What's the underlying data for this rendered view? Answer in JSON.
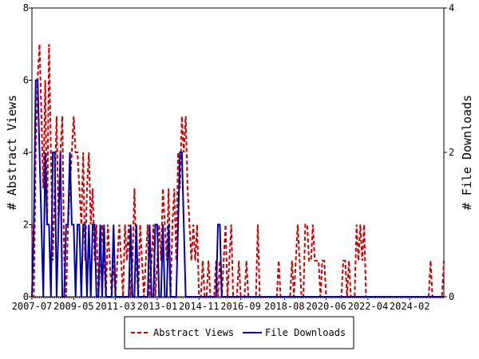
{
  "chart_data": {
    "type": "line",
    "y_label": "# Abstract Views",
    "y2_label": "# File Downloads",
    "categories": [
      "2007-07",
      null,
      null,
      null,
      null,
      null,
      null,
      null,
      null,
      null,
      null,
      null,
      null,
      null,
      null,
      null,
      null,
      null,
      null,
      null,
      null,
      null,
      "2009-05",
      null,
      null,
      null,
      null,
      null,
      null,
      null,
      null,
      null,
      null,
      null,
      null,
      null,
      null,
      null,
      null,
      null,
      null,
      null,
      null,
      null,
      "2011-03",
      null,
      null,
      null,
      null,
      null,
      null,
      null,
      null,
      null,
      null,
      null,
      null,
      null,
      null,
      null,
      null,
      null,
      null,
      null,
      null,
      null,
      "2013-01",
      null,
      null,
      null,
      null,
      null,
      null,
      null,
      null,
      null,
      null,
      null,
      null,
      null,
      null,
      null,
      null,
      null,
      null,
      null,
      null,
      null,
      "2014-11",
      null,
      null,
      null,
      null,
      null,
      null,
      null,
      null,
      null,
      null,
      null,
      null,
      null,
      null,
      null,
      null,
      null,
      null,
      null,
      null,
      null,
      "2016-09",
      null,
      null,
      null,
      null,
      null,
      null,
      null,
      null,
      null,
      null,
      null,
      null,
      null,
      null,
      null,
      null,
      null,
      null,
      null,
      null,
      null,
      null,
      "2018-08",
      null,
      null,
      null,
      null,
      null,
      null,
      null,
      null,
      null,
      null,
      null,
      null,
      null,
      null,
      null,
      null,
      null,
      null,
      null,
      null,
      null,
      "2020-06",
      null,
      null,
      null,
      null,
      null,
      null,
      null,
      null,
      null,
      null,
      null,
      null,
      null,
      null,
      null,
      null,
      null,
      null,
      null,
      null,
      null,
      "2022-04",
      null,
      null,
      null,
      null,
      null,
      null,
      null,
      null,
      null,
      null,
      null,
      null,
      null,
      null,
      null,
      null,
      null,
      null,
      null,
      null,
      null,
      "2024-02",
      null,
      null,
      null,
      null,
      null,
      null,
      null,
      null,
      null,
      null,
      null,
      null,
      null,
      null,
      null,
      null,
      null,
      null
    ],
    "series": [
      {
        "name": "Abstract Views",
        "color": "#cc0000",
        "style": "dashed",
        "axis": "y",
        "values": [
          2,
          0,
          4,
          6,
          7,
          5,
          3,
          6,
          2,
          7,
          4,
          1,
          3,
          5,
          2,
          4,
          5,
          1,
          0,
          2,
          3,
          4,
          5,
          4,
          4,
          3,
          2,
          4,
          1,
          3,
          4,
          2,
          3,
          1,
          2,
          0,
          1,
          2,
          1,
          0,
          2,
          1,
          0,
          1,
          0,
          1,
          2,
          1,
          0,
          2,
          1,
          2,
          0,
          1,
          3,
          1,
          0,
          2,
          1,
          0,
          1,
          2,
          0,
          1,
          2,
          0,
          1,
          2,
          1,
          3,
          2,
          1,
          3,
          0,
          2,
          3,
          1,
          4,
          3,
          5,
          4,
          5,
          3,
          2,
          1,
          2,
          1,
          2,
          0,
          0,
          1,
          0,
          0,
          1,
          0,
          0,
          0,
          1,
          0,
          1,
          0,
          1,
          2,
          0,
          1,
          2,
          0,
          0,
          0,
          1,
          0,
          0,
          0,
          1,
          0,
          0,
          0,
          0,
          0,
          2,
          0,
          0,
          0,
          0,
          0,
          0,
          0,
          0,
          0,
          0,
          1,
          0,
          0,
          0,
          0,
          0,
          0,
          1,
          0,
          1,
          2,
          1,
          0,
          0,
          2,
          2,
          1,
          1,
          2,
          1,
          1,
          1,
          0,
          1,
          1,
          0,
          0,
          0,
          0,
          0,
          0,
          0,
          0,
          0,
          1,
          1,
          0,
          1,
          0,
          0,
          0,
          2,
          1,
          2,
          1,
          2,
          0,
          0,
          0,
          0,
          0,
          0,
          0,
          0,
          0,
          0,
          0,
          0,
          0,
          0,
          0,
          0,
          0,
          0,
          0,
          0,
          0,
          0,
          0,
          0,
          0,
          0,
          0,
          0,
          0,
          0,
          0,
          0,
          0,
          0,
          1,
          0,
          0,
          0,
          0,
          0,
          0,
          1
        ]
      },
      {
        "name": "File Downloads",
        "color": "#0000a8",
        "style": "solid",
        "axis": "y2",
        "values": [
          0,
          1,
          3,
          3,
          2,
          1,
          0,
          2,
          1,
          1,
          0,
          2,
          2,
          0,
          1,
          2,
          0,
          0,
          1,
          1,
          2,
          1,
          1,
          0,
          1,
          1,
          0,
          1,
          1,
          0,
          1,
          0,
          1,
          1,
          0,
          0,
          1,
          0,
          1,
          0,
          0,
          0,
          0,
          1,
          0,
          0,
          0,
          0,
          0,
          0,
          0,
          0,
          1,
          0,
          0,
          1,
          0,
          0,
          0,
          0,
          0,
          0,
          1,
          0,
          0,
          1,
          1,
          0,
          0,
          1,
          0,
          0,
          1,
          0,
          0,
          0,
          0,
          1,
          2,
          2,
          1,
          0,
          0,
          0,
          0,
          0,
          0,
          0,
          0,
          0,
          0,
          0,
          0,
          0,
          0,
          0,
          0,
          0,
          1,
          1,
          0,
          0,
          0,
          0,
          0,
          0,
          0,
          0,
          0,
          0,
          0,
          0,
          0,
          0,
          0,
          0,
          0,
          0,
          0,
          0,
          0,
          0,
          0,
          0,
          0,
          0,
          0,
          0,
          0,
          0,
          0,
          0,
          0,
          0,
          0,
          0,
          0,
          0,
          0,
          0,
          0,
          0,
          0,
          0,
          0,
          0,
          0,
          0,
          0,
          0,
          0,
          0,
          0,
          0,
          0,
          0,
          0,
          0,
          0,
          0,
          0,
          0,
          0,
          0,
          0,
          0,
          0,
          0,
          0,
          0,
          0,
          0,
          0,
          0,
          0,
          0,
          0,
          0,
          0,
          0,
          0,
          0,
          0,
          0,
          0,
          0,
          0,
          0,
          0,
          0,
          0,
          0,
          0,
          0,
          0,
          0,
          0,
          0,
          0,
          0,
          0,
          0,
          0,
          0,
          0,
          0,
          0,
          0,
          0,
          0,
          0,
          0,
          0,
          0,
          0,
          0,
          0,
          0
        ]
      }
    ],
    "ylim": [
      0,
      8
    ],
    "yticks": [
      0,
      2,
      4,
      6,
      8
    ],
    "y2lim": [
      0,
      4
    ],
    "y2ticks": [
      0,
      2,
      4
    ],
    "grid": false,
    "legend": "bottom"
  }
}
